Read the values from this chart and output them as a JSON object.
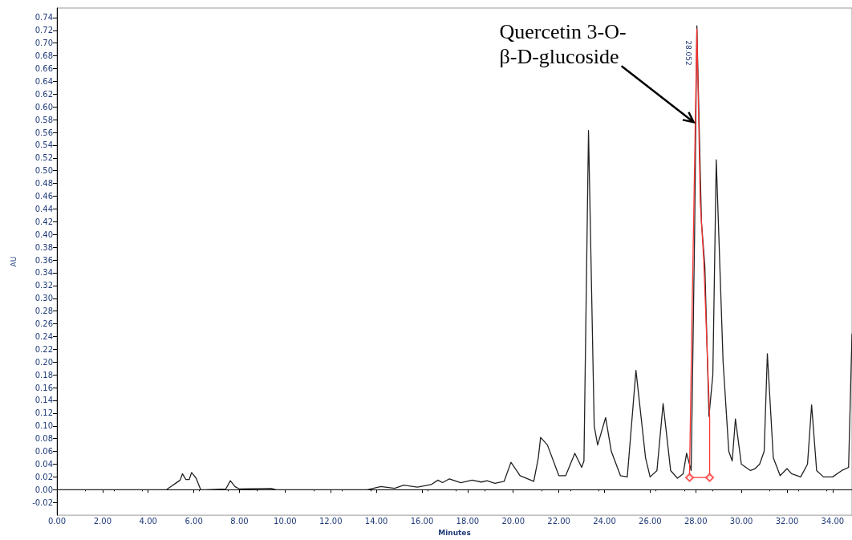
{
  "chart_data": {
    "type": "line",
    "xlabel": "Minutes",
    "ylabel": "AU",
    "annotations": [
      {
        "text": "Quercetin 3-O-\nβ-D-glucoside",
        "x": 27.98,
        "y": 0.576
      },
      {
        "text": "28.052",
        "x": 28.05,
        "y": 0.722
      }
    ],
    "xlim": [
      0,
      34.85
    ],
    "ylim": [
      -0.04,
      0.755
    ],
    "xticks": [
      {
        "value": 0,
        "label": "0.00"
      },
      {
        "value": 2,
        "label": "2.00"
      },
      {
        "value": 4,
        "label": "4.00"
      },
      {
        "value": 6,
        "label": "6.00"
      },
      {
        "value": 8,
        "label": "8.00"
      },
      {
        "value": 10,
        "label": "10.00"
      },
      {
        "value": 12,
        "label": "12.00"
      },
      {
        "value": 14,
        "label": "14.00"
      },
      {
        "value": 16,
        "label": "16.00"
      },
      {
        "value": 18,
        "label": "18.00"
      },
      {
        "value": 20,
        "label": "20.00"
      },
      {
        "value": 22,
        "label": "22.00"
      },
      {
        "value": 24,
        "label": "24.00"
      },
      {
        "value": 26,
        "label": "26.00"
      },
      {
        "value": 28,
        "label": "28.00"
      },
      {
        "value": 30,
        "label": "30.00"
      },
      {
        "value": 32,
        "label": "32.00"
      },
      {
        "value": 34,
        "label": "34.00"
      }
    ],
    "yticks": [
      {
        "value": -0.02,
        "label": "-0.02"
      },
      {
        "value": 0,
        "label": "0.00"
      },
      {
        "value": 0.02,
        "label": "0.02"
      },
      {
        "value": 0.04,
        "label": "0.04"
      },
      {
        "value": 0.06,
        "label": "0.06"
      },
      {
        "value": 0.08,
        "label": "0.08"
      },
      {
        "value": 0.1,
        "label": "0.10"
      },
      {
        "value": 0.12,
        "label": "0.12"
      },
      {
        "value": 0.14,
        "label": "0.14"
      },
      {
        "value": 0.16,
        "label": "0.16"
      },
      {
        "value": 0.18,
        "label": "0.18"
      },
      {
        "value": 0.2,
        "label": "0.20"
      },
      {
        "value": 0.22,
        "label": "0.22"
      },
      {
        "value": 0.24,
        "label": "0.24"
      },
      {
        "value": 0.26,
        "label": "0.26"
      },
      {
        "value": 0.28,
        "label": "0.28"
      },
      {
        "value": 0.3,
        "label": "0.30"
      },
      {
        "value": 0.32,
        "label": "0.32"
      },
      {
        "value": 0.34,
        "label": "0.34"
      },
      {
        "value": 0.36,
        "label": "0.36"
      },
      {
        "value": 0.38,
        "label": "0.38"
      },
      {
        "value": 0.4,
        "label": "0.40"
      },
      {
        "value": 0.42,
        "label": "0.42"
      },
      {
        "value": 0.44,
        "label": "0.44"
      },
      {
        "value": 0.46,
        "label": "0.46"
      },
      {
        "value": 0.48,
        "label": "0.48"
      },
      {
        "value": 0.5,
        "label": "0.50"
      },
      {
        "value": 0.52,
        "label": "0.52"
      },
      {
        "value": 0.54,
        "label": "0.54"
      },
      {
        "value": 0.56,
        "label": "0.56"
      },
      {
        "value": 0.58,
        "label": "0.58"
      },
      {
        "value": 0.6,
        "label": "0.60"
      },
      {
        "value": 0.62,
        "label": "0.62"
      },
      {
        "value": 0.64,
        "label": "0.64"
      },
      {
        "value": 0.66,
        "label": "0.66"
      },
      {
        "value": 0.68,
        "label": "0.68"
      },
      {
        "value": 0.7,
        "label": "0.70"
      },
      {
        "value": 0.72,
        "label": "0.72"
      },
      {
        "value": 0.74,
        "label": "0.74"
      }
    ],
    "marker": "none",
    "line_style": "solid",
    "series": [
      {
        "color": "#222222",
        "x": [
          0,
          4.8,
          5.0,
          5.2,
          5.4,
          5.5,
          5.65,
          5.8,
          5.9,
          6.1,
          6.3,
          6.5,
          7.4,
          7.6,
          7.8,
          8.0,
          9.4,
          9.6,
          13.6,
          14.2,
          14.8,
          15.2,
          15.8,
          16.4,
          16.7,
          16.9,
          17.2,
          17.7,
          18.2,
          18.6,
          18.85,
          19.2,
          19.6,
          19.9,
          20.3,
          20.9,
          21.1,
          21.2,
          21.5,
          22.0,
          22.3,
          22.7,
          23.0,
          23.1,
          23.3,
          23.55,
          23.7,
          24.05,
          24.3,
          24.7,
          25.0,
          25.38,
          25.8,
          26.0,
          26.3,
          26.57,
          26.9,
          27.2,
          27.45,
          27.6,
          27.8,
          27.95,
          28.05,
          28.25,
          28.4,
          28.58,
          28.75,
          28.9,
          29.2,
          29.45,
          29.6,
          29.74,
          30.0,
          30.4,
          30.6,
          30.8,
          31.0,
          31.14,
          31.4,
          31.7,
          32.0,
          32.2,
          32.6,
          32.9,
          33.08,
          33.3,
          33.6,
          34.0,
          34.4,
          34.7,
          34.85
        ],
        "values": [
          0.0,
          0.0,
          0.005,
          0.01,
          0.015,
          0.025,
          0.016,
          0.016,
          0.027,
          0.018,
          0.0,
          0.0,
          0.001,
          0.014,
          0.005,
          0.001,
          0.002,
          0.0,
          0.0,
          0.005,
          0.002,
          0.007,
          0.004,
          0.008,
          0.015,
          0.011,
          0.017,
          0.011,
          0.015,
          0.012,
          0.014,
          0.01,
          0.013,
          0.043,
          0.022,
          0.013,
          0.05,
          0.082,
          0.07,
          0.022,
          0.022,
          0.057,
          0.035,
          0.045,
          0.563,
          0.1,
          0.07,
          0.113,
          0.06,
          0.022,
          0.02,
          0.187,
          0.05,
          0.02,
          0.03,
          0.135,
          0.03,
          0.018,
          0.025,
          0.057,
          0.03,
          0.4,
          0.727,
          0.42,
          0.35,
          0.115,
          0.18,
          0.517,
          0.2,
          0.06,
          0.045,
          0.111,
          0.04,
          0.03,
          0.033,
          0.04,
          0.06,
          0.213,
          0.05,
          0.022,
          0.033,
          0.025,
          0.02,
          0.04,
          0.133,
          0.03,
          0.02,
          0.02,
          0.03,
          0.035,
          0.244
        ]
      },
      {
        "color": "#ff3333",
        "x": [
          27.73,
          27.73,
          27.85,
          28.05,
          28.2,
          28.35,
          28.61,
          28.61
        ],
        "values": [
          0.019,
          0.03,
          0.3,
          0.722,
          0.45,
          0.36,
          0.115,
          0.019
        ]
      },
      {
        "color": "#ff3333",
        "x": [
          27.73,
          28.61
        ],
        "values": [
          0.019,
          0.019
        ]
      },
      {
        "type": "scatter",
        "marker": "diamond",
        "color": "#ff3333",
        "x": [
          27.73,
          28.61
        ],
        "values": [
          0.019,
          0.019
        ]
      }
    ]
  }
}
